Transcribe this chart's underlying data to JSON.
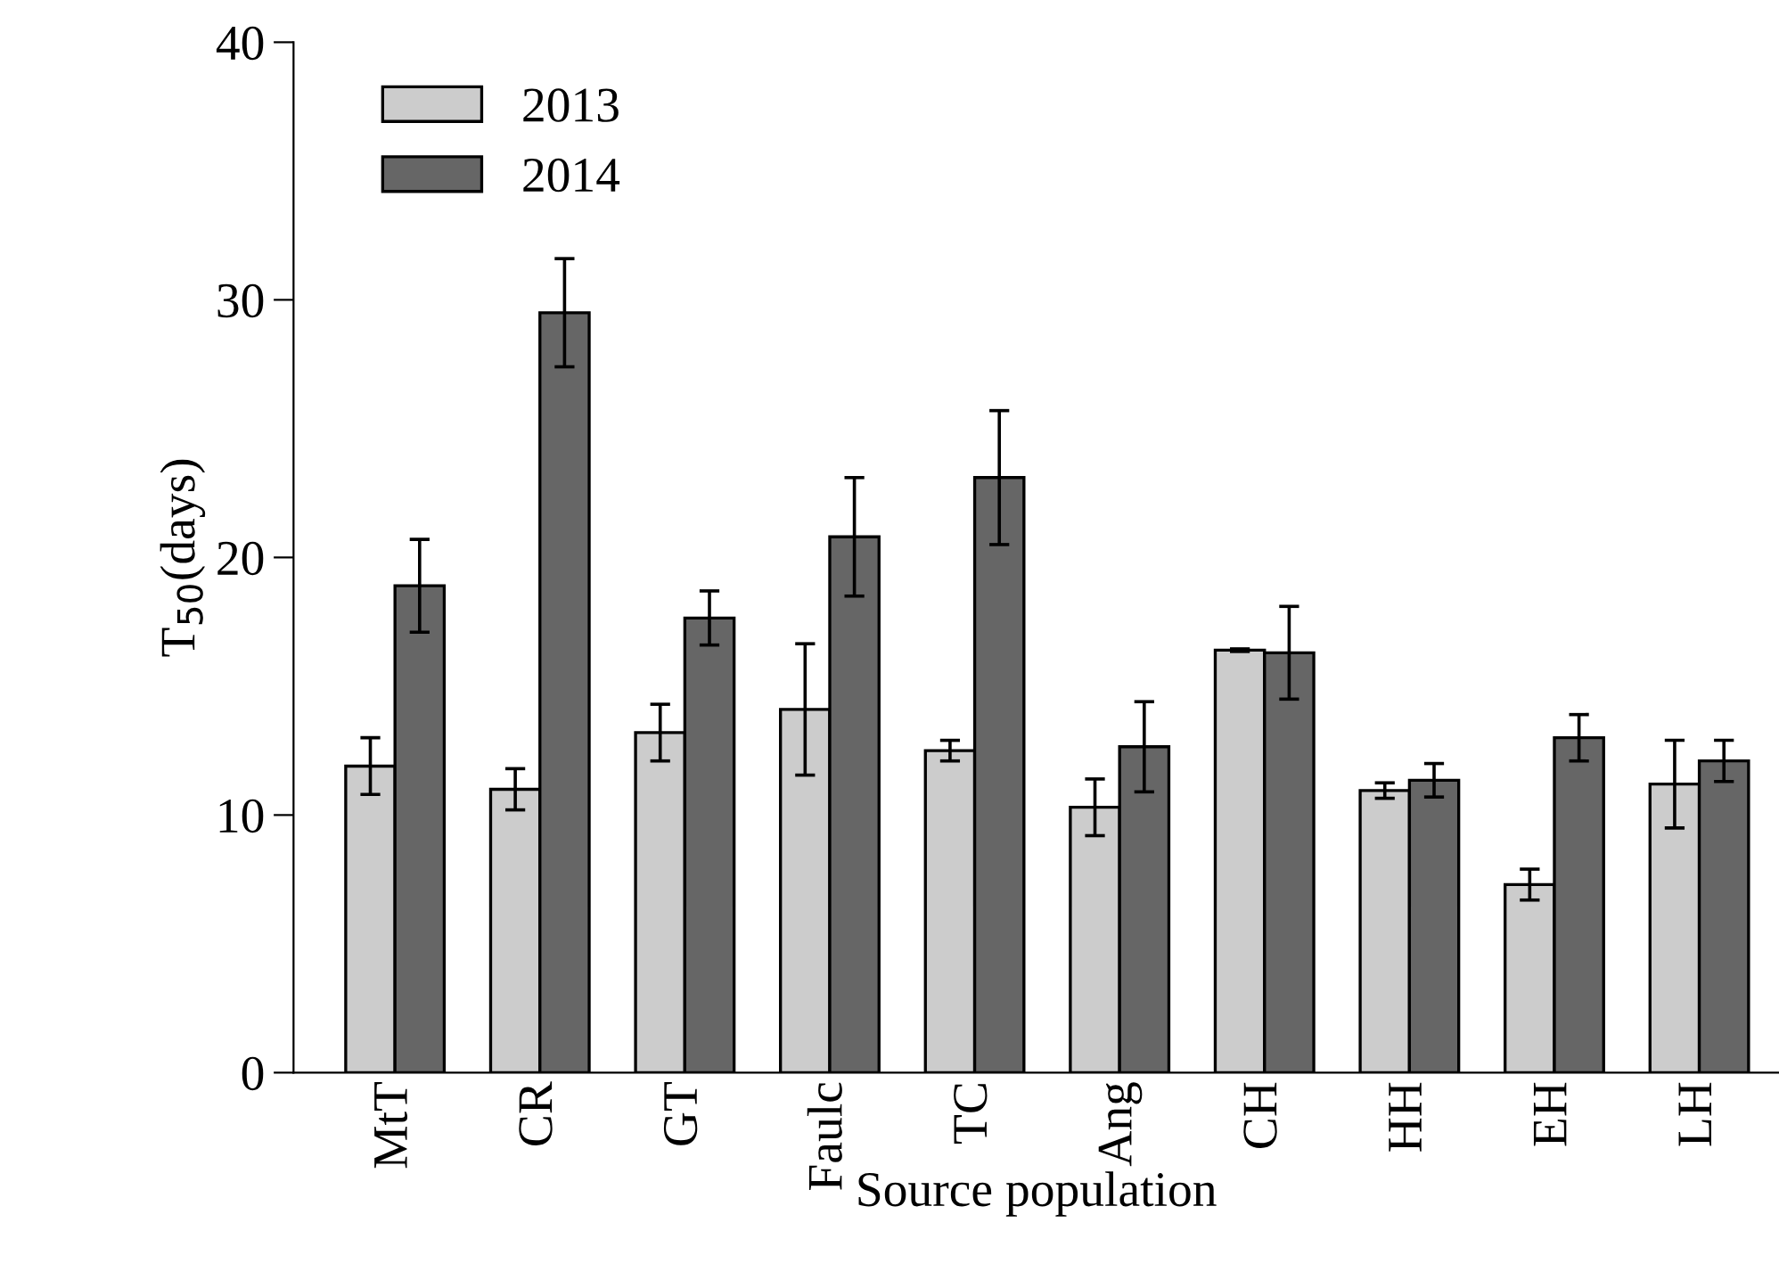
{
  "chart_data": {
    "type": "bar",
    "xlabel": "Source population",
    "ylabel": "T$_{50}$(days)",
    "categories": [
      "MtT",
      "CR",
      "GT",
      "Faulc",
      "TC",
      "Ang",
      "CH",
      "HH",
      "EH",
      "LH"
    ],
    "series": [
      {
        "name": "2013",
        "color": "#cccccc",
        "values": [
          11.9,
          11.0,
          13.2,
          14.1,
          12.5,
          10.3,
          16.4,
          10.95,
          7.3,
          11.2
        ],
        "errors": [
          1.1,
          0.8,
          1.1,
          2.55,
          0.4,
          1.1,
          0.05,
          0.3,
          0.6,
          1.7
        ]
      },
      {
        "name": "2014",
        "color": "#666666",
        "values": [
          18.9,
          29.5,
          17.65,
          20.8,
          23.1,
          12.65,
          16.3,
          11.35,
          13.0,
          12.1
        ],
        "errors": [
          1.8,
          2.1,
          1.05,
          2.3,
          2.6,
          1.75,
          1.8,
          0.65,
          0.9,
          0.8
        ]
      }
    ],
    "ylim": [
      0,
      40
    ],
    "yticks": [
      0,
      10,
      20,
      30,
      40
    ],
    "grid": false,
    "legend": "top left"
  }
}
